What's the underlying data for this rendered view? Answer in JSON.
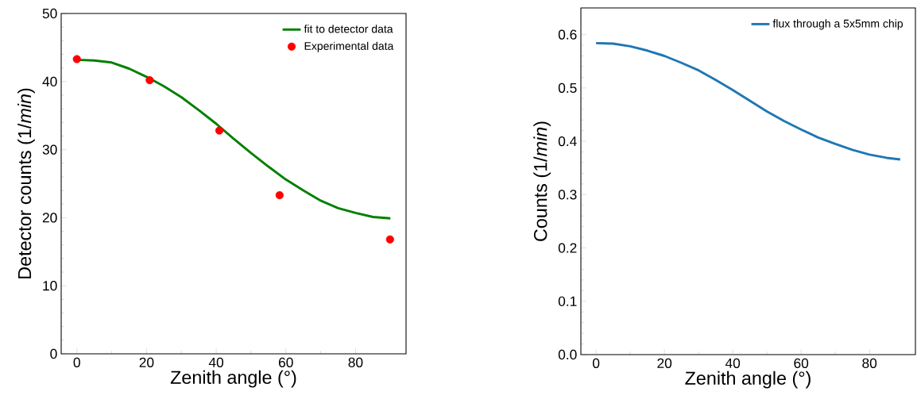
{
  "chart_data": [
    {
      "type": "line",
      "xlabel": "Zenith angle (°)",
      "ylabel": "Detector counts (1/*min*)",
      "xlim": [
        -4.5,
        94.5
      ],
      "ylim": [
        0,
        50
      ],
      "xticks": [
        0,
        20,
        40,
        60,
        80
      ],
      "yticks": [
        0,
        10,
        20,
        30,
        40,
        50
      ],
      "legend": "top right",
      "series": [
        {
          "name": "fit to detector data",
          "type": "line",
          "marker": "none",
          "color": "#008000",
          "x": [
            0,
            5,
            10,
            15,
            20,
            25,
            30,
            35,
            40,
            45,
            50,
            55,
            60,
            65,
            70,
            75,
            80,
            85,
            90
          ],
          "values": [
            43.2,
            43.1,
            42.8,
            41.9,
            40.7,
            39.3,
            37.7,
            35.8,
            33.8,
            31.6,
            29.5,
            27.5,
            25.6,
            24.0,
            22.5,
            21.4,
            20.7,
            20.1,
            19.9
          ]
        },
        {
          "name": "Experimental data",
          "type": "scatter",
          "marker": "circle",
          "color": "#ff0000",
          "x": [
            0,
            20.9,
            40.9,
            58.2,
            89.9
          ],
          "values": [
            43.3,
            40.2,
            32.8,
            23.3,
            16.8
          ]
        }
      ]
    },
    {
      "type": "line",
      "xlabel": "Zenith angle (°)",
      "ylabel": "Counts (1/*min*)",
      "xlim": [
        -4.45,
        93.45
      ],
      "ylim": [
        0,
        0.65
      ],
      "xticks": [
        0,
        20,
        40,
        60,
        80
      ],
      "yticks": [
        {
          "value": 0,
          "label": "0.0"
        },
        {
          "value": 0.1,
          "label": "0.1"
        },
        {
          "value": 0.2,
          "label": "0.2"
        },
        {
          "value": 0.3,
          "label": "0.3"
        },
        {
          "value": 0.4,
          "label": "0.4"
        },
        {
          "value": 0.5,
          "label": "0.5"
        },
        {
          "value": 0.6,
          "label": "0.6"
        }
      ],
      "legend": "top right",
      "series": [
        {
          "name": "flux through a 5x5mm chip",
          "type": "line",
          "marker": "none",
          "color": "#1f77b4",
          "x": [
            0,
            5,
            10,
            15,
            20,
            25,
            30,
            35,
            40,
            45,
            50,
            55,
            60,
            65,
            70,
            75,
            80,
            85,
            89
          ],
          "values": [
            0.584,
            0.583,
            0.578,
            0.57,
            0.56,
            0.547,
            0.533,
            0.515,
            0.496,
            0.476,
            0.456,
            0.438,
            0.422,
            0.407,
            0.395,
            0.384,
            0.375,
            0.369,
            0.366
          ]
        }
      ]
    }
  ]
}
